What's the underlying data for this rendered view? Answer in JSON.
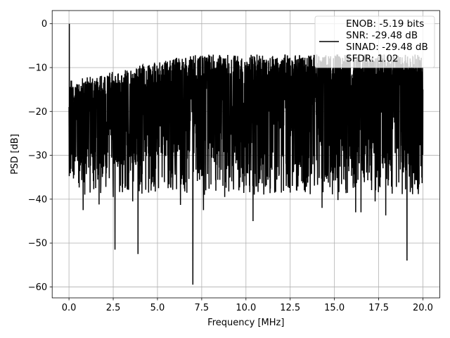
{
  "chart_data": {
    "type": "line",
    "title": "",
    "xlabel": "Frequency [MHz]",
    "ylabel": "PSD [dB]",
    "xlim": [
      -0.95,
      20.95
    ],
    "ylim": [
      -62.5,
      3
    ],
    "x_ticks": [
      0.0,
      2.5,
      5.0,
      7.5,
      10.0,
      12.5,
      15.0,
      17.5,
      20.0
    ],
    "x_tick_labels": [
      "0.0",
      "2.5",
      "5.0",
      "7.5",
      "10.0",
      "12.5",
      "15.0",
      "17.5",
      "20.0"
    ],
    "y_ticks": [
      0,
      -10,
      -20,
      -30,
      -40,
      -50,
      -60
    ],
    "y_tick_labels": [
      "0",
      "−10",
      "−20",
      "−30",
      "−40",
      "−50",
      "−60"
    ],
    "grid": true,
    "legend_position": "top-right",
    "legend_lines": [
      "ENOB: -5.19 bits",
      "SNR: -29.48 dB",
      "SINAD: -29.48 dB",
      "SFDR: 1.02"
    ],
    "series": [
      {
        "color": "#000000",
        "x": [
          0.0,
          0.05,
          0.1,
          0.2,
          0.3,
          0.4,
          0.5,
          0.6,
          0.7,
          0.8,
          1.0,
          1.2,
          1.5,
          2.0,
          2.5,
          2.6,
          3.0,
          3.5,
          3.9,
          4.0,
          5.0,
          6.0,
          7.0,
          7.5,
          8.0,
          9.0,
          10.0,
          11.0,
          12.0,
          13.0,
          14.0,
          15.0,
          16.0,
          16.5,
          17.0,
          17.5,
          18.0,
          19.0,
          19.1,
          20.0
        ],
        "y": [
          0.0,
          -12.0,
          -24.0,
          -15.0,
          -30.0,
          -14.0,
          -35.0,
          -13.0,
          -38.0,
          -12.0,
          -30.0,
          -11.0,
          -33.0,
          -10.0,
          -30.0,
          -51.5,
          -12.0,
          -32.0,
          -52.5,
          -10.0,
          -30.0,
          -11.0,
          -59.5,
          -10.0,
          -32.0,
          -9.0,
          -30.0,
          -8.0,
          -31.0,
          -9.0,
          -30.0,
          -8.0,
          -31.0,
          -43.0,
          -9.0,
          -30.0,
          -10.0,
          -31.0,
          -54.0,
          -15.0
        ]
      }
    ],
    "annotations": [
      {
        "x": 2.6,
        "y": -51.5
      },
      {
        "x": 3.9,
        "y": -52.5
      },
      {
        "x": 7.0,
        "y": -59.5
      },
      {
        "x": 19.1,
        "y": -54.0
      }
    ]
  }
}
